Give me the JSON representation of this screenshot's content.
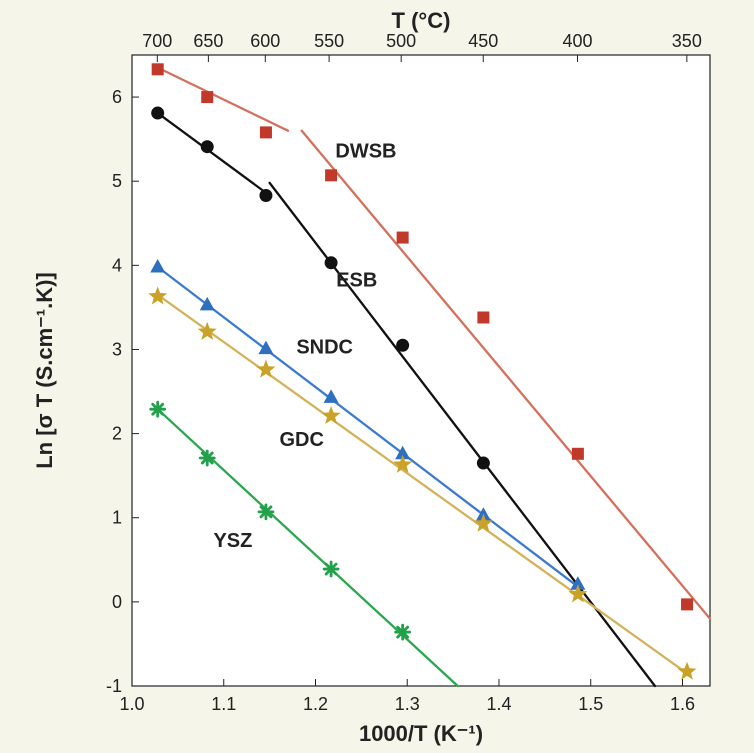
{
  "chart_data": {
    "type": "scatter",
    "xlabel": "1000/T (K⁻¹)",
    "ylabel": "Ln [σ T (S.cm⁻¹.K)]",
    "top_xlabel": "T (°C)",
    "xlim": [
      1.0,
      1.63
    ],
    "ylim": [
      -1,
      6.5
    ],
    "x_ticks": [
      1.0,
      1.1,
      1.2,
      1.3,
      1.4,
      1.5,
      1.6
    ],
    "x_tick_labels": [
      "1.0",
      "1.1",
      "1.2",
      "1.3",
      "1.4",
      "1.5",
      "1.6"
    ],
    "y_ticks": [
      -1,
      0,
      1,
      2,
      3,
      4,
      5,
      6
    ],
    "y_tick_labels": [
      "-1",
      "0",
      "1",
      "2",
      "3",
      "4",
      "5",
      "6"
    ],
    "top_ticks_celsius": [
      700,
      650,
      600,
      550,
      500,
      450,
      400,
      350
    ],
    "top_tick_labels": [
      "700",
      "650",
      "600",
      "550",
      "500",
      "450",
      "400",
      "350"
    ],
    "series": [
      {
        "name": "DWSB",
        "color": "#c0392b",
        "line_color": "#d4705d",
        "marker": "square",
        "x": [
          1.028,
          1.082,
          1.146,
          1.217,
          1.295,
          1.383,
          1.486,
          1.605
        ],
        "y": [
          6.33,
          6.0,
          5.58,
          5.07,
          4.33,
          3.38,
          1.76,
          -0.03
        ],
        "fit_lines": [
          {
            "x": [
              1.028,
              1.17
            ],
            "y": [
              6.35,
              5.6
            ]
          },
          {
            "x": [
              1.185,
              1.63
            ],
            "y": [
              5.6,
              -0.2
            ]
          }
        ]
      },
      {
        "name": "ESB",
        "color": "#111111",
        "line_color": "#111111",
        "marker": "circle",
        "x": [
          1.028,
          1.082,
          1.146,
          1.217,
          1.295,
          1.383
        ],
        "y": [
          5.81,
          5.41,
          4.83,
          4.03,
          3.05,
          1.65
        ],
        "fit_lines": [
          {
            "x": [
              1.028,
              1.15
            ],
            "y": [
              5.81,
              4.83
            ]
          },
          {
            "x": [
              1.15,
              1.57
            ],
            "y": [
              4.98,
              -1.0
            ]
          }
        ]
      },
      {
        "name": "SNDC",
        "color": "#2f6fc0",
        "line_color": "#3b7ad1",
        "marker": "triangle",
        "x": [
          1.028,
          1.082,
          1.146,
          1.217,
          1.295,
          1.383,
          1.486
        ],
        "y": [
          3.98,
          3.53,
          3.01,
          2.43,
          1.76,
          1.03,
          0.21
        ],
        "fit_lines": [
          {
            "x": [
              1.028,
              1.486
            ],
            "y": [
              3.98,
              0.18
            ]
          }
        ]
      },
      {
        "name": "GDC",
        "color": "#c9a227",
        "line_color": "#d4b25b",
        "marker": "star",
        "x": [
          1.028,
          1.082,
          1.146,
          1.217,
          1.295,
          1.383,
          1.486,
          1.605
        ],
        "y": [
          3.63,
          3.21,
          2.76,
          2.21,
          1.63,
          0.93,
          0.09,
          -0.83
        ],
        "fit_lines": [
          {
            "x": [
              1.028,
              1.605
            ],
            "y": [
              3.65,
              -0.85
            ]
          }
        ]
      },
      {
        "name": "YSZ",
        "color": "#22a04a",
        "line_color": "#2aa74f",
        "marker": "cross",
        "x": [
          1.028,
          1.082,
          1.146,
          1.217,
          1.295
        ],
        "y": [
          2.29,
          1.71,
          1.07,
          0.39,
          -0.36
        ],
        "fit_lines": [
          {
            "x": [
              1.028,
              1.355
            ],
            "y": [
              2.29,
              -1.0
            ]
          }
        ]
      }
    ]
  }
}
